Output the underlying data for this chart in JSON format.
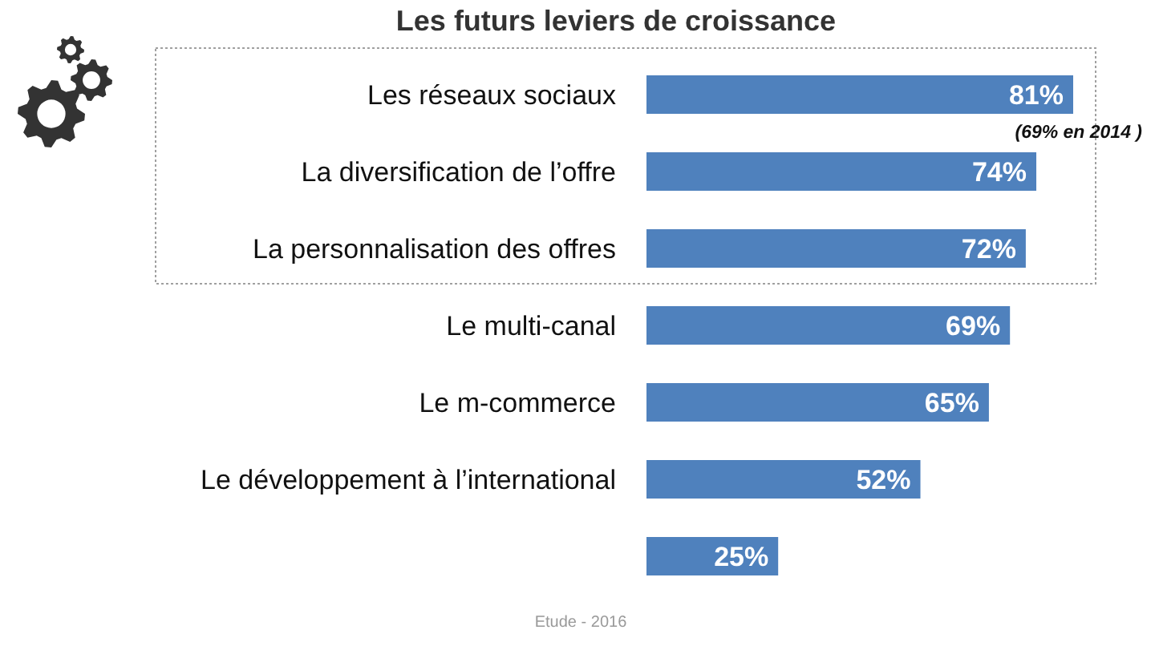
{
  "chart_data": {
    "type": "bar",
    "orientation": "horizontal",
    "title": "Les futurs leviers de croissance",
    "categories": [
      "Les réseaux sociaux",
      "La diversification de l’offre",
      "La personnalisation des offres",
      "Le multi-canal",
      "Le m-commerce ",
      "Le développement à l’international",
      null
    ],
    "values": [
      81,
      74,
      72,
      69,
      65,
      52,
      25
    ],
    "value_labels": [
      "81%",
      "74%",
      "72%",
      "69%",
      "65%",
      "52%",
      "25%"
    ],
    "color": "#4f81bd",
    "annotations": [
      "(69% en 2014 )",
      "Etude - 2016"
    ]
  }
}
